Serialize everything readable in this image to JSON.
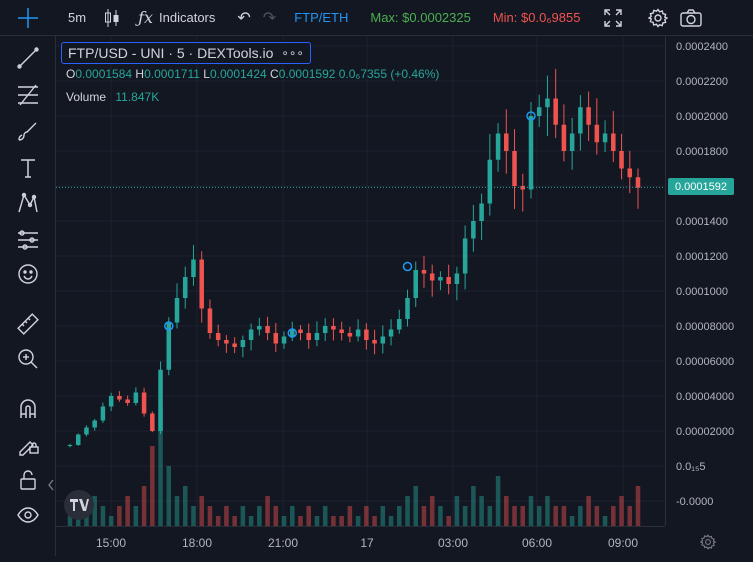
{
  "toolbar": {
    "interval": "5m",
    "indicators_label": "Indicators",
    "pair": "FTP/ETH",
    "max_label": "Max: $0.0002325",
    "min_label": "Min: $0.0₆9855"
  },
  "legend": {
    "symbol": "FTP/USD - UNI · 5 · DEXTools.io",
    "more": "∘∘∘"
  },
  "ohlc": {
    "o_key": "O",
    "o_val": "0.0001584",
    "h_key": "H",
    "h_val": "0.0001711",
    "l_key": "L",
    "l_val": "0.0001424",
    "c_key": "C",
    "c_val": "0.0001592",
    "change": "0.0₆7355 (+0.46%)"
  },
  "volume": {
    "label": "Volume",
    "value": "11.847K"
  },
  "colors": {
    "up": "#26a69a",
    "down": "#ef5350",
    "background": "#131722",
    "grid": "#1e222d",
    "max": "#4caf50",
    "min": "#ef5350",
    "pair": "#2196f3"
  },
  "icons": {
    "toolbar": [
      "crosshair-icon",
      "candles-icon",
      "fx-icon",
      "undo-icon",
      "redo-icon",
      "fullscreen-icon",
      "settings-icon",
      "camera-icon"
    ],
    "sidebar": [
      "trendline-icon",
      "fib-icon",
      "brush-icon",
      "text-icon",
      "pattern-icon",
      "forecast-icon",
      "emoji-icon",
      "ruler-icon",
      "zoom-icon",
      "magnet-icon",
      "lock-drawing-icon",
      "lock-icon",
      "eye-icon"
    ]
  },
  "chart_data": {
    "type": "candlestick",
    "x_ticks": [
      "15:00",
      "18:00",
      "21:00",
      "17",
      "03:00",
      "06:00",
      "09:00"
    ],
    "y_ticks": [
      "0.0002400",
      "0.0002200",
      "0.0002000",
      "0.0001800",
      "0.0001600",
      "0.0001400",
      "0.0001200",
      "0.0001000",
      "0.00008000",
      "0.00006000",
      "0.00004000",
      "0.00002000",
      "0.0₁₅5",
      "-0.0000"
    ],
    "ylim": [
      0,
      0.00024
    ],
    "current_price": "0.0001592",
    "series": [
      {
        "name": "Price",
        "values": [
          1.2e-05,
          1.8e-05,
          2.2e-05,
          2.6e-05,
          3.4e-05,
          4e-05,
          3.8e-05,
          3.6e-05,
          4.2e-05,
          3e-05,
          2e-05,
          5.5e-05,
          8.2e-05,
          9.6e-05,
          0.000108,
          0.000118,
          9e-05,
          7.6e-05,
          7.2e-05,
          7e-05,
          6.8e-05,
          7.2e-05,
          7.8e-05,
          8e-05,
          7.6e-05,
          7e-05,
          7.4e-05,
          7.8e-05,
          7.6e-05,
          7.2e-05,
          7.6e-05,
          8e-05,
          7.8e-05,
          7.6e-05,
          7.4e-05,
          7.8e-05,
          7.2e-05,
          7e-05,
          7.4e-05,
          7.8e-05,
          8.4e-05,
          9.6e-05,
          0.000112,
          0.00011,
          0.000106,
          0.000108,
          0.000104,
          0.00011,
          0.00013,
          0.00014,
          0.00015,
          0.000175,
          0.00019,
          0.00018,
          0.00016,
          0.000158,
          0.0002,
          0.000205,
          0.00021,
          0.000195,
          0.00018,
          0.00019,
          0.000205,
          0.000195,
          0.000185,
          0.00019,
          0.00018,
          0.00017,
          0.000165,
          0.000159
        ]
      }
    ],
    "volumes": [
      1,
      2,
      1,
      3,
      2,
      1,
      2,
      3,
      2,
      4,
      8,
      12,
      6,
      3,
      4,
      2,
      3,
      2,
      1,
      2,
      1,
      2,
      1,
      2,
      3,
      2,
      1,
      2,
      1,
      2,
      1,
      2,
      1,
      1,
      2,
      1,
      2,
      1,
      2,
      1,
      2,
      3,
      4,
      2,
      3,
      2,
      1,
      3,
      2,
      4,
      3,
      2,
      5,
      3,
      2,
      2,
      3,
      2,
      3,
      2,
      2,
      1,
      2,
      3,
      2,
      1,
      2,
      3,
      2,
      4
    ],
    "markers": [
      8e-05,
      7.6e-05,
      0.000114,
      0.0002
    ]
  }
}
